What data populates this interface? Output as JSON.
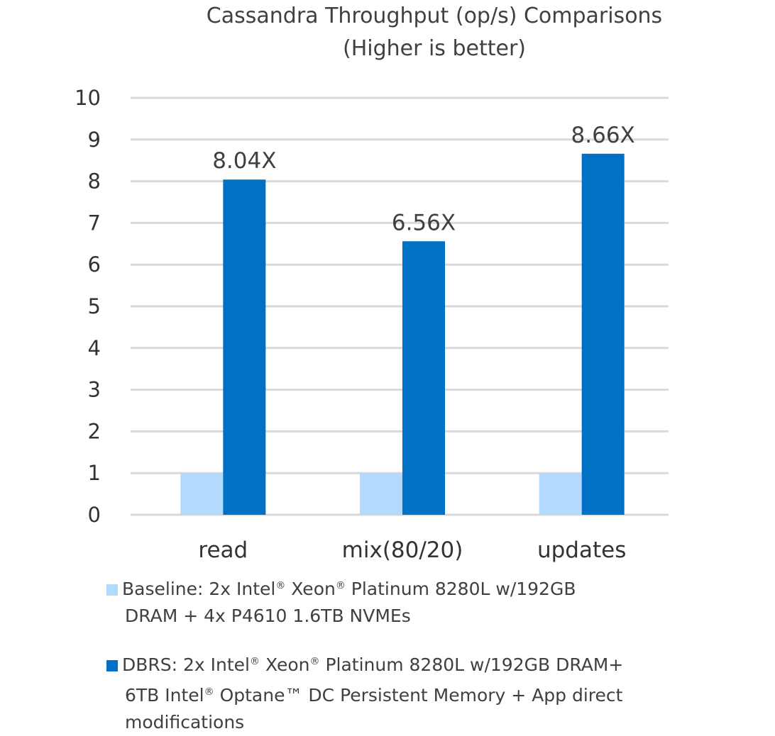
{
  "chart_data": {
    "type": "bar",
    "title": "Cassandra Throughput (op/s) Comparisons",
    "subtitle": "(Higher is better)",
    "categories": [
      "read",
      "mix(80/20)",
      "updates"
    ],
    "series": [
      {
        "name": "Baseline: 2x Intel® Xeon® Platinum 8280L w/192GB DRAM + 4x P4610 1.6TB NVMEs",
        "color": "#b3d9ff",
        "values": [
          1,
          1,
          1
        ],
        "data_labels": [
          "",
          "",
          ""
        ]
      },
      {
        "name": "DBRS: 2x Intel® Xeon® Platinum 8280L w/192GB DRAM+ 6TB Intel® Optane™ DC Persistent Memory + App direct modifications",
        "color": "#0071c5",
        "values": [
          8.04,
          6.56,
          8.66
        ],
        "data_labels": [
          "8.04X",
          "6.56X",
          "8.66X"
        ]
      }
    ],
    "ylim": [
      0,
      10
    ],
    "yticks": [
      0,
      1,
      2,
      3,
      4,
      5,
      6,
      7,
      8,
      9,
      10
    ],
    "grid": true,
    "legend_position": "bottom",
    "xlabel": "",
    "ylabel": ""
  },
  "legend": {
    "baseline_line1": "Baseline: 2x Intel® Xeon® Platinum 8280L w/192GB",
    "baseline_line2": "DRAM + 4x P4610 1.6TB NVMEs",
    "dbrs_line1": "DBRS: 2x Intel® Xeon® Platinum 8280L w/192GB DRAM+",
    "dbrs_line2": "6TB Intel® Optane™ DC Persistent Memory + App direct",
    "dbrs_line3": "modifications"
  }
}
